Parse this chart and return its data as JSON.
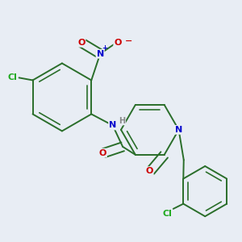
{
  "background_color": "#e8edf4",
  "bond_color": "#2a6e2a",
  "atom_colors": {
    "N": "#0000cc",
    "O": "#cc0000",
    "Cl": "#22aa22",
    "H": "#888888"
  },
  "bond_lw": 1.4,
  "font_size": 8
}
